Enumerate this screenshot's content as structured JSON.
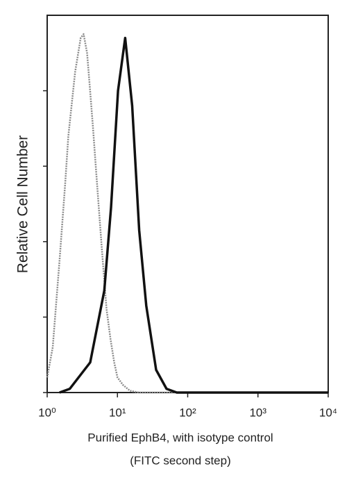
{
  "chart_data": {
    "type": "line",
    "x_label": "Purified EphB4, with isotype control",
    "x_label_2": "(FITC second step)",
    "y_label": "Relative Cell Number",
    "xscale": "log",
    "xlim": [
      1,
      10000
    ],
    "xticks": [
      {
        "value": 1,
        "label": "10⁰"
      },
      {
        "value": 10,
        "label": "10¹"
      },
      {
        "value": 100,
        "label": "10²"
      },
      {
        "value": 1000,
        "label": "10³"
      },
      {
        "value": 10000,
        "label": "10⁴"
      }
    ],
    "ylim": [
      0,
      100
    ],
    "yticks": [
      0,
      20,
      40,
      60,
      80
    ],
    "series": [
      {
        "color": "#8a8a8a",
        "dashed": true,
        "x": [
          1,
          1.2,
          1.5,
          1.8,
          2,
          2.5,
          3,
          3.3,
          3.7,
          4,
          4.5,
          5,
          6,
          7,
          8,
          9,
          10,
          12,
          15,
          20,
          10000
        ],
        "values": [
          4,
          12,
          35,
          55,
          68,
          85,
          94,
          95,
          90,
          82,
          70,
          58,
          38,
          22,
          14,
          8,
          4,
          2,
          0.5,
          0,
          0
        ]
      },
      {
        "color": "#111111",
        "dashed": false,
        "x": [
          1.5,
          2.1,
          4.1,
          6.5,
          8.1,
          10.2,
          12.9,
          16.2,
          20.4,
          25.7,
          35.5,
          50,
          70,
          10000
        ],
        "values": [
          0,
          1,
          8,
          27,
          49,
          80,
          94,
          76,
          43,
          23,
          6,
          1,
          0,
          0
        ]
      }
    ]
  }
}
